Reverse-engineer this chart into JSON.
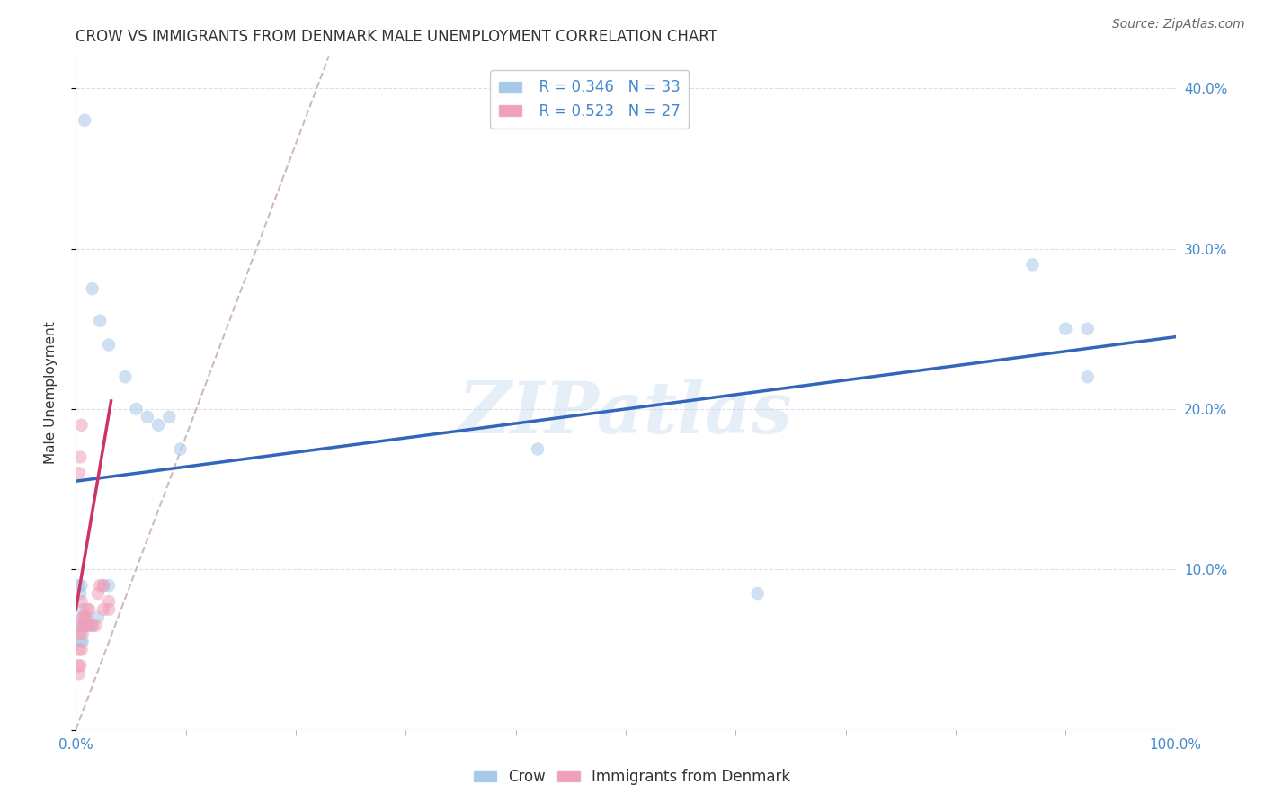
{
  "title": "CROW VS IMMIGRANTS FROM DENMARK MALE UNEMPLOYMENT CORRELATION CHART",
  "source": "Source: ZipAtlas.com",
  "ylabel": "Male Unemployment",
  "watermark": "ZIPatlas",
  "legend_r1": "R = 0.346",
  "legend_n1": "N = 33",
  "legend_r2": "R = 0.523",
  "legend_n2": "N = 27",
  "legend_label1": "Crow",
  "legend_label2": "Immigrants from Denmark",
  "blue_color": "#A8C8E8",
  "pink_color": "#F0A0B8",
  "blue_line_color": "#3366BB",
  "pink_line_color": "#CC3366",
  "dashed_color": "#D0B8C0",
  "xlim": [
    0.0,
    1.0
  ],
  "ylim": [
    0.0,
    0.42
  ],
  "xtick_left": 0.0,
  "xtick_right": 1.0,
  "xtick_left_label": "0.0%",
  "xtick_right_label": "100.0%",
  "ytick_positions": [
    0.0,
    0.1,
    0.2,
    0.3,
    0.4
  ],
  "ytick_labels": [
    "",
    "10.0%",
    "20.0%",
    "30.0%",
    "40.0%"
  ],
  "crow_x": [
    0.008,
    0.015,
    0.022,
    0.03,
    0.045,
    0.055,
    0.065,
    0.075,
    0.085,
    0.095,
    0.003,
    0.004,
    0.005,
    0.006,
    0.007,
    0.008,
    0.009,
    0.01,
    0.012,
    0.015,
    0.02,
    0.025,
    0.03,
    0.003,
    0.004,
    0.005,
    0.006,
    0.42,
    0.62,
    0.87,
    0.9,
    0.92,
    0.92
  ],
  "crow_y": [
    0.38,
    0.275,
    0.255,
    0.24,
    0.22,
    0.2,
    0.195,
    0.19,
    0.195,
    0.175,
    0.09,
    0.085,
    0.09,
    0.075,
    0.07,
    0.065,
    0.065,
    0.07,
    0.065,
    0.065,
    0.07,
    0.09,
    0.09,
    0.065,
    0.06,
    0.055,
    0.055,
    0.175,
    0.085,
    0.29,
    0.25,
    0.25,
    0.22
  ],
  "denmark_x": [
    0.002,
    0.003,
    0.003,
    0.004,
    0.004,
    0.005,
    0.005,
    0.005,
    0.006,
    0.006,
    0.007,
    0.008,
    0.009,
    0.01,
    0.01,
    0.012,
    0.015,
    0.018,
    0.02,
    0.022,
    0.025,
    0.025,
    0.03,
    0.03,
    0.003,
    0.004,
    0.005
  ],
  "denmark_y": [
    0.04,
    0.035,
    0.05,
    0.04,
    0.06,
    0.05,
    0.08,
    0.065,
    0.06,
    0.07,
    0.065,
    0.07,
    0.07,
    0.065,
    0.075,
    0.075,
    0.065,
    0.065,
    0.085,
    0.09,
    0.09,
    0.075,
    0.075,
    0.08,
    0.16,
    0.17,
    0.19
  ],
  "blue_line_x": [
    0.0,
    1.0
  ],
  "blue_line_y": [
    0.155,
    0.245
  ],
  "pink_line_x": [
    0.0,
    0.032
  ],
  "pink_line_y": [
    0.075,
    0.205
  ],
  "dashed_line_x": [
    0.0,
    0.23
  ],
  "dashed_line_y": [
    0.0,
    0.42
  ],
  "title_fontsize": 12,
  "axis_tick_fontsize": 11,
  "ylabel_fontsize": 11,
  "legend_fontsize": 12,
  "source_fontsize": 10,
  "marker_size": 110,
  "marker_alpha": 0.55,
  "background_color": "#FFFFFF",
  "grid_color": "#DDDDEE",
  "tick_color": "#4488CC",
  "text_color": "#333333"
}
